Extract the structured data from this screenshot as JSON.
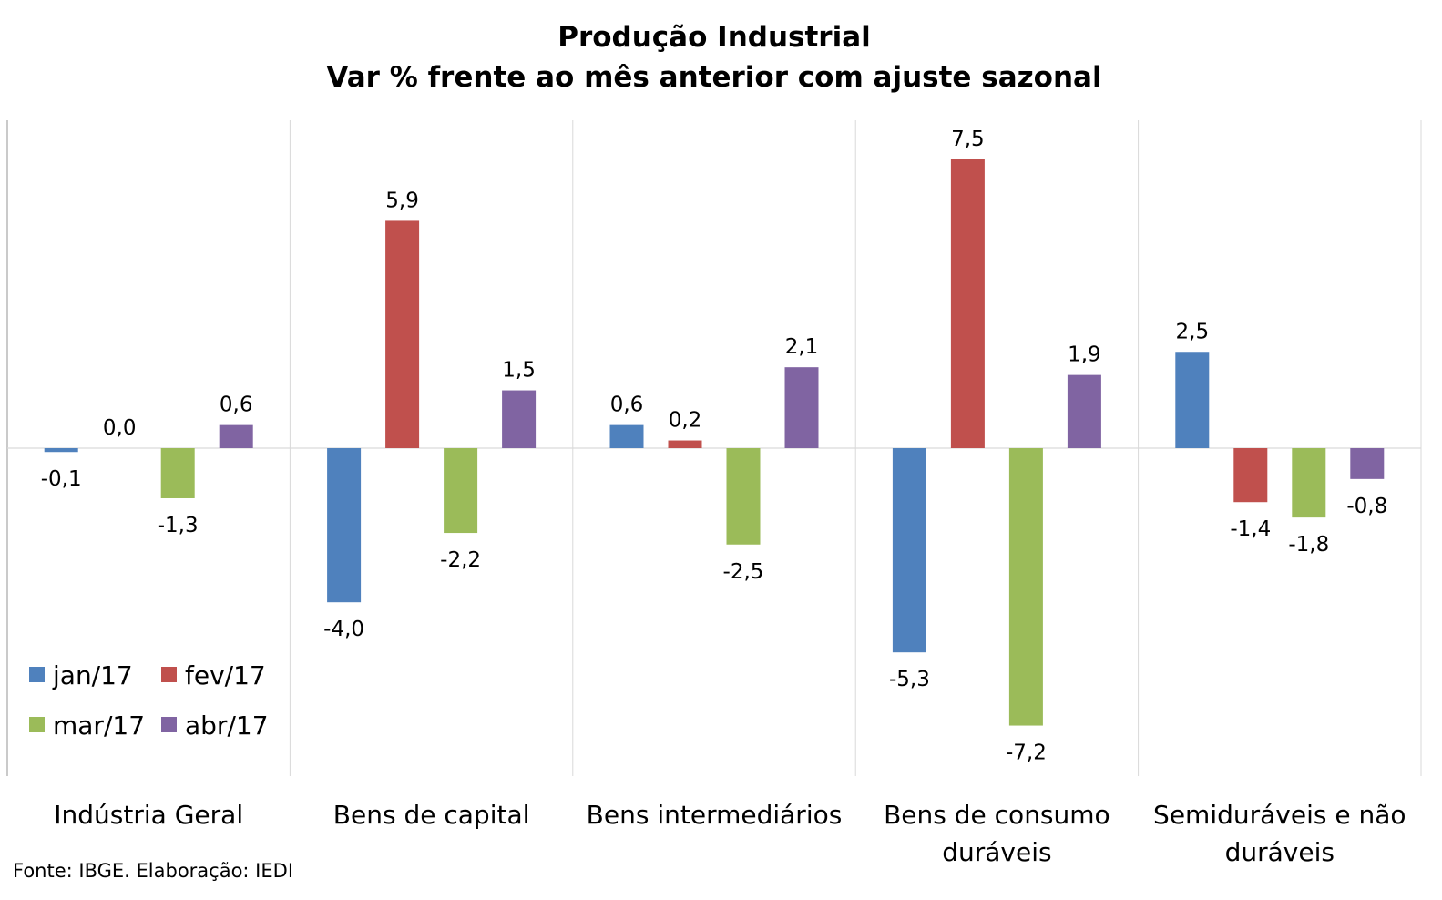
{
  "chart_data": {
    "type": "bar",
    "title": "Produção Industrial",
    "subtitle": "Var % frente ao mês anterior com ajuste sazonal",
    "categories": [
      [
        "Indústria Geral"
      ],
      [
        "Bens de capital"
      ],
      [
        "Bens intermediários"
      ],
      [
        "Bens de consumo",
        "duráveis"
      ],
      [
        "Semiduráveis e não",
        "duráveis"
      ]
    ],
    "series": [
      {
        "name": "jan/17",
        "color": "#4F81BD",
        "values": [
          -0.1,
          -4.0,
          0.6,
          -5.3,
          2.5
        ],
        "labels": [
          "-0,1",
          "-4,0",
          "0,6",
          "-5,3",
          "2,5"
        ]
      },
      {
        "name": "fev/17",
        "color": "#C0504D",
        "values": [
          0.0,
          5.9,
          0.2,
          7.5,
          -1.4
        ],
        "labels": [
          "0,0",
          "5,9",
          "0,2",
          "7,5",
          "-1,4"
        ]
      },
      {
        "name": "mar/17",
        "color": "#9BBB59",
        "values": [
          -1.3,
          -2.2,
          -2.5,
          -7.2,
          -1.8
        ],
        "labels": [
          "-1,3",
          "-2,2",
          "-2,5",
          "-7,2",
          "-1,8"
        ]
      },
      {
        "name": "abr/17",
        "color": "#8064A2",
        "values": [
          0.6,
          1.5,
          2.1,
          1.9,
          -0.8
        ],
        "labels": [
          "0,6",
          "1,5",
          "2,1",
          "1,9",
          "-0,8"
        ]
      }
    ],
    "ylim": [
      -8.5,
      8.5
    ],
    "grid": "vertical separators between categories",
    "legend_placement": "bottom-left",
    "source": "Fonte: IBGE. Elaboração: IEDI"
  }
}
